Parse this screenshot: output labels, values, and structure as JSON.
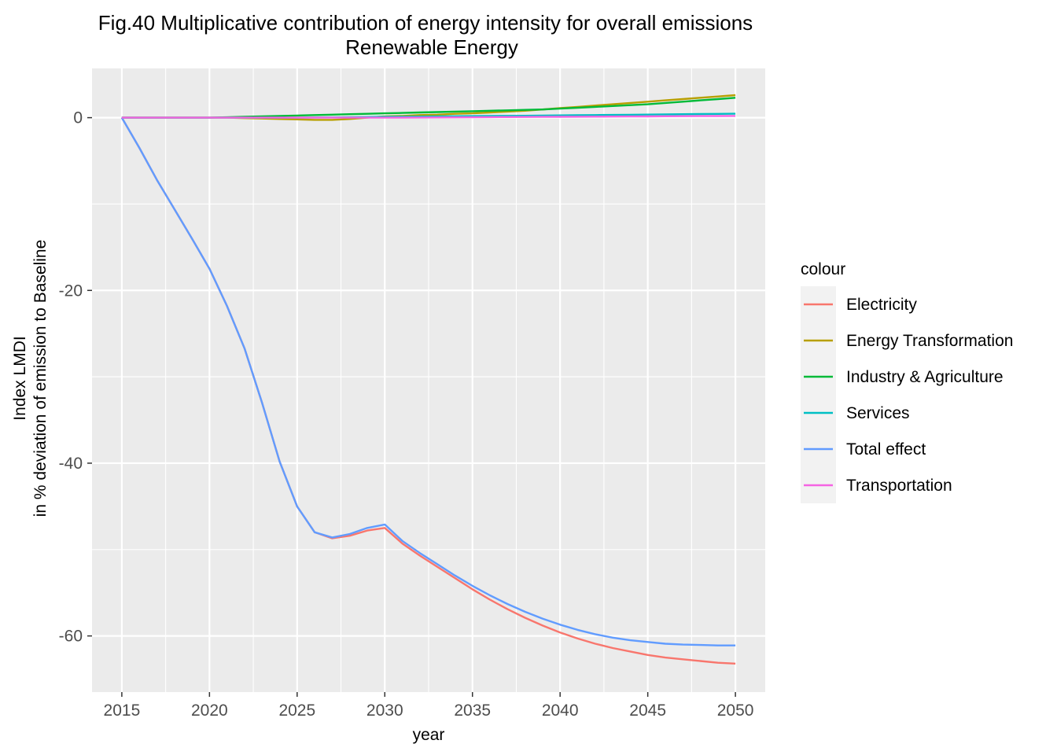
{
  "chart_data": {
    "type": "line",
    "title": "Fig.40 Multiplicative contribution of energy intensity for overall emissions",
    "subtitle": "Renewable Energy",
    "xlabel": "year",
    "ylabel_line1": "Index LMDI",
    "ylabel_line2": "in % deviation of emission to Baseline",
    "xlim": [
      2013.3,
      2051.7
    ],
    "ylim": [
      -66.5,
      5.7
    ],
    "x_ticks": [
      2015,
      2020,
      2025,
      2030,
      2035,
      2040,
      2045,
      2050
    ],
    "y_ticks": [
      0,
      -20,
      -40,
      -60
    ],
    "grid": true,
    "legend_position": "right",
    "legend_title": "colour",
    "x": [
      2015,
      2016,
      2017,
      2018,
      2019,
      2020,
      2021,
      2022,
      2023,
      2024,
      2025,
      2026,
      2027,
      2028,
      2029,
      2030,
      2031,
      2032,
      2033,
      2034,
      2035,
      2036,
      2037,
      2038,
      2039,
      2040,
      2041,
      2042,
      2043,
      2044,
      2045,
      2046,
      2047,
      2048,
      2049,
      2050
    ],
    "series": [
      {
        "name": "Electricity",
        "color": "#F8766D",
        "values": [
          0,
          -3.5,
          -7.2,
          -10.6,
          -14,
          -17.5,
          -21.8,
          -26.7,
          -33,
          -39.8,
          -45,
          -48,
          -48.7,
          -48.4,
          -47.8,
          -47.5,
          -49.3,
          -50.7,
          -52,
          -53.3,
          -54.6,
          -55.8,
          -56.9,
          -57.9,
          -58.8,
          -59.6,
          -60.3,
          -60.9,
          -61.4,
          -61.8,
          -62.2,
          -62.5,
          -62.7,
          -62.9,
          -63.1,
          -63.2
        ]
      },
      {
        "name": "Energy Transformation",
        "color": "#B79F00",
        "values": [
          0,
          0,
          0,
          0,
          0,
          0,
          0,
          -0.05,
          -0.1,
          -0.15,
          -0.2,
          -0.25,
          -0.25,
          -0.15,
          0,
          0.15,
          0.2,
          0.3,
          0.35,
          0.45,
          0.5,
          0.6,
          0.7,
          0.8,
          0.95,
          1.1,
          1.25,
          1.4,
          1.55,
          1.7,
          1.85,
          2,
          2.15,
          2.3,
          2.45,
          2.6
        ]
      },
      {
        "name": "Industry & Agriculture",
        "color": "#00BA38",
        "values": [
          0,
          0,
          0,
          0,
          0,
          0,
          0.05,
          0.1,
          0.15,
          0.2,
          0.25,
          0.3,
          0.35,
          0.4,
          0.45,
          0.5,
          0.55,
          0.6,
          0.65,
          0.7,
          0.75,
          0.8,
          0.85,
          0.9,
          0.95,
          1.05,
          1.15,
          1.25,
          1.35,
          1.45,
          1.55,
          1.7,
          1.85,
          2,
          2.15,
          2.3
        ]
      },
      {
        "name": "Services",
        "color": "#00BFC4",
        "values": [
          0,
          0,
          0,
          0,
          0,
          0,
          0,
          0,
          0,
          0,
          0,
          0.02,
          0.03,
          0.05,
          0.07,
          0.1,
          0.12,
          0.13,
          0.15,
          0.16,
          0.18,
          0.2,
          0.21,
          0.22,
          0.24,
          0.26,
          0.28,
          0.3,
          0.32,
          0.34,
          0.36,
          0.38,
          0.4,
          0.42,
          0.44,
          0.46
        ]
      },
      {
        "name": "Total effect",
        "color": "#619CFF",
        "values": [
          0,
          -3.5,
          -7.2,
          -10.6,
          -14,
          -17.5,
          -21.8,
          -26.7,
          -33,
          -39.8,
          -45,
          -48,
          -48.6,
          -48.2,
          -47.5,
          -47.1,
          -49,
          -50.4,
          -51.7,
          -53,
          -54.2,
          -55.3,
          -56.3,
          -57.2,
          -58,
          -58.7,
          -59.3,
          -59.8,
          -60.2,
          -60.5,
          -60.7,
          -60.9,
          -61,
          -61.05,
          -61.1,
          -61.1
        ]
      },
      {
        "name": "Transportation",
        "color": "#F564E3",
        "values": [
          0,
          0,
          0,
          0,
          0,
          0,
          0,
          0,
          0,
          0,
          0,
          0,
          0,
          0,
          0,
          0,
          0.01,
          0.02,
          0.03,
          0.04,
          0.05,
          0.06,
          0.07,
          0.08,
          0.09,
          0.1,
          0.11,
          0.12,
          0.13,
          0.14,
          0.15,
          0.16,
          0.17,
          0.18,
          0.19,
          0.2
        ]
      }
    ]
  }
}
